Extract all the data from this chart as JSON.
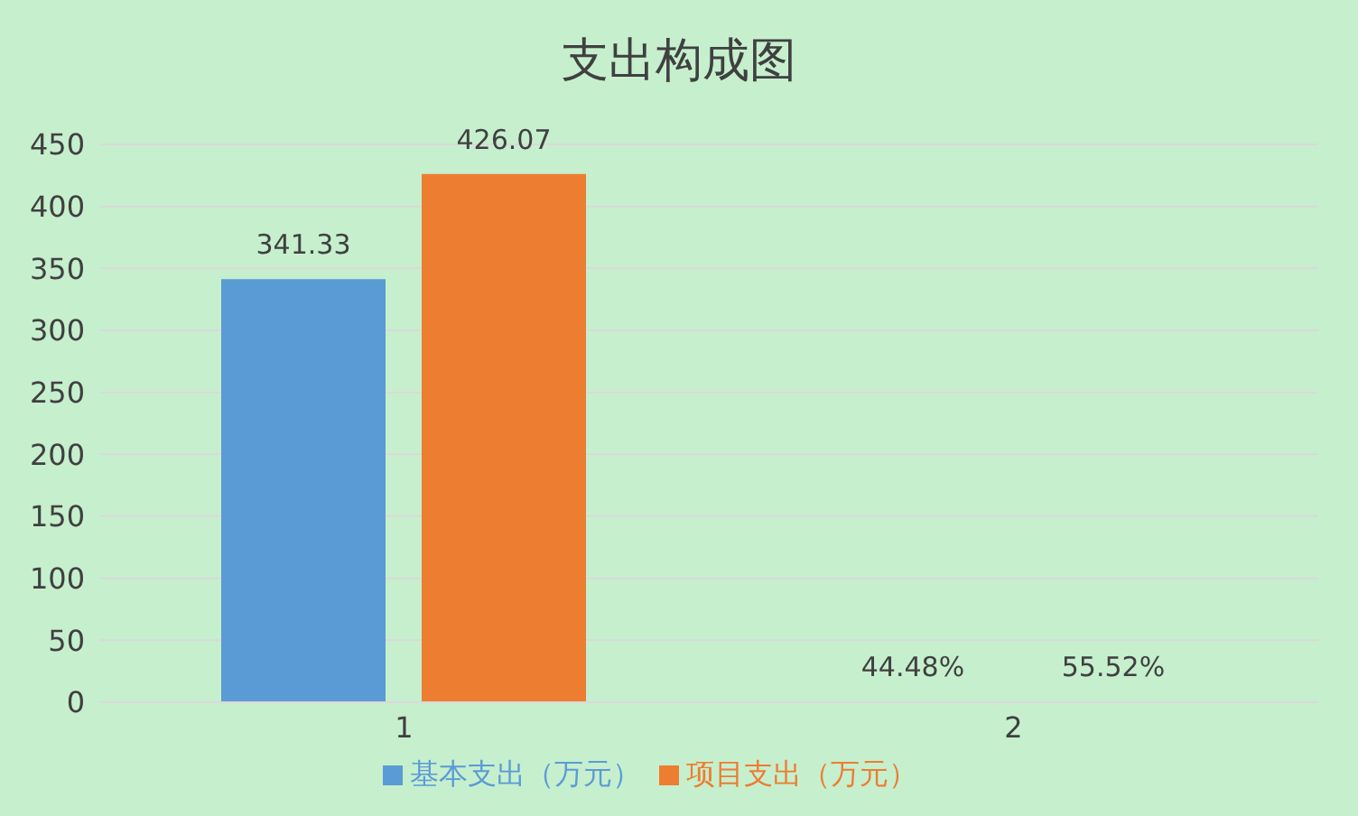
{
  "chart_data": {
    "type": "bar",
    "title": "支出构成图",
    "categories": [
      "1",
      "2"
    ],
    "series": [
      {
        "name": "基本支出（万元）",
        "color": "#5b9bd5",
        "values": [
          341.33,
          0.4448
        ],
        "value_labels": [
          "341.33",
          "44.48%"
        ]
      },
      {
        "name": "项目支出（万元）",
        "color": "#ed7d31",
        "values": [
          426.07,
          0.5552
        ],
        "value_labels": [
          "426.07",
          "55.52%"
        ]
      }
    ],
    "ylim": [
      0,
      450
    ],
    "yticks": [
      0,
      50,
      100,
      150,
      200,
      250,
      300,
      350,
      400,
      450
    ],
    "grid": "y",
    "legend": "bottom"
  }
}
